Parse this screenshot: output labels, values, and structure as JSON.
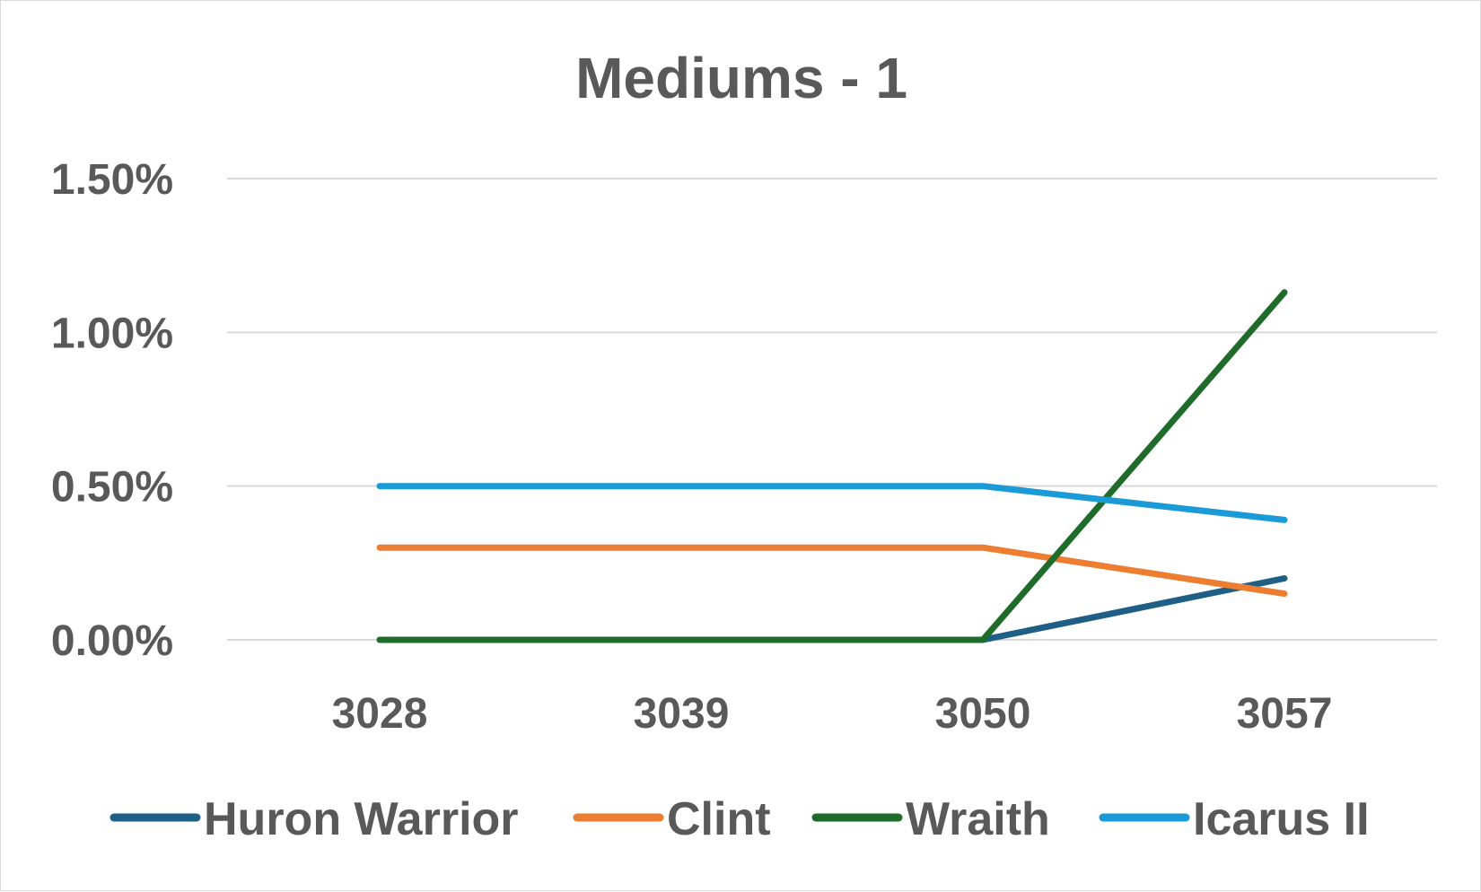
{
  "chart_data": {
    "type": "line",
    "title": "Mediums - 1",
    "xlabel": "",
    "ylabel": "",
    "categories": [
      "3028",
      "3039",
      "3050",
      "3057"
    ],
    "ylim": [
      0,
      0.015
    ],
    "yticks": [
      {
        "value": 0.0,
        "label": "0.00%"
      },
      {
        "value": 0.005,
        "label": "0.50%"
      },
      {
        "value": 0.01,
        "label": "1.00%"
      },
      {
        "value": 0.015,
        "label": "1.50%"
      }
    ],
    "grid": true,
    "legend_position": "bottom",
    "series": [
      {
        "name": "Huron Warrior",
        "color": "#1f5f86",
        "values": [
          null,
          null,
          0.0,
          0.002
        ]
      },
      {
        "name": "Clint",
        "color": "#ed7d31",
        "values": [
          0.003,
          0.003,
          0.003,
          0.0015
        ]
      },
      {
        "name": "Wraith",
        "color": "#1e6b2a",
        "values": [
          0.0,
          0.0,
          0.0,
          0.0113
        ]
      },
      {
        "name": "Icarus II",
        "color": "#1a9bd7",
        "values": [
          0.005,
          0.005,
          0.005,
          0.0039
        ]
      }
    ]
  }
}
